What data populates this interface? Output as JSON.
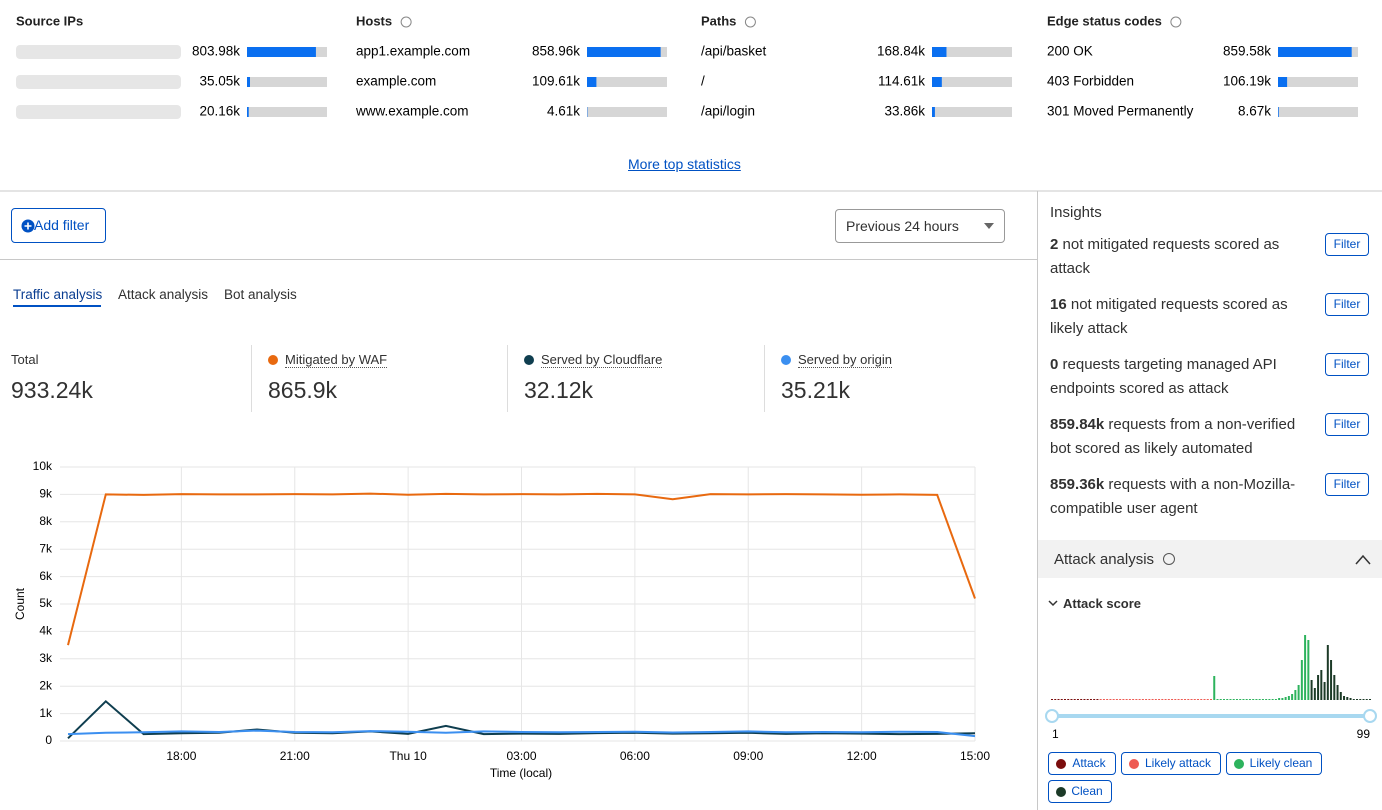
{
  "top_stats": [
    {
      "title": "Source IPs",
      "rows": [
        {
          "value": 803980,
          "label": "803.98k"
        },
        {
          "value": 35050,
          "label": "35.05k"
        },
        {
          "value": 20160,
          "label": "20.16k"
        }
      ]
    },
    {
      "title": "Hosts",
      "rows": [
        {
          "name": "app1.example.com",
          "value": 858960,
          "label": "858.96k"
        },
        {
          "name": "example.com",
          "value": 109610,
          "label": "109.61k"
        },
        {
          "name": "www.example.com",
          "value": 4610,
          "label": "4.61k"
        }
      ]
    },
    {
      "title": "Paths",
      "rows": [
        {
          "name": "/api/basket",
          "value": 168840,
          "label": "168.84k"
        },
        {
          "name": "/",
          "value": 114610,
          "label": "114.61k"
        },
        {
          "name": "/api/login",
          "value": 33860,
          "label": "33.86k"
        }
      ]
    },
    {
      "title": "Edge status codes",
      "rows": [
        {
          "name": "200 OK",
          "value": 859580,
          "label": "859.58k"
        },
        {
          "name": "403 Forbidden",
          "value": 106190,
          "label": "106.19k"
        },
        {
          "name": "301 Moved Permanently",
          "value": 8670,
          "label": "8.67k"
        }
      ]
    }
  ],
  "more_link": "More top statistics",
  "add_filter": "Add filter",
  "time_range": "Previous 24 hours",
  "tabs": [
    "Traffic analysis",
    "Attack analysis",
    "Bot analysis"
  ],
  "total": {
    "name": "Total",
    "value": 933240,
    "label": "933.24k"
  },
  "chart_data": [
    {
      "type": "line",
      "x_label": "Time (local)",
      "y_label": "Count",
      "categories": [
        null,
        null,
        null,
        "18:00",
        null,
        null,
        "21:00",
        null,
        null,
        "Thu 10",
        null,
        null,
        "03:00",
        null,
        null,
        "06:00",
        null,
        null,
        "09:00",
        null,
        null,
        "12:00",
        null,
        null,
        "15:00"
      ],
      "ylim": [
        0,
        10000
      ],
      "yticks": [
        0,
        {
          "value": 1000,
          "label": "1k"
        },
        {
          "value": 2000,
          "label": "2k"
        },
        {
          "value": 3000,
          "label": "3k"
        },
        {
          "value": 4000,
          "label": "4k"
        },
        {
          "value": 5000,
          "label": "5k"
        },
        {
          "value": 6000,
          "label": "6k"
        },
        {
          "value": 7000,
          "label": "7k"
        },
        {
          "value": 8000,
          "label": "8k"
        },
        {
          "value": 9000,
          "label": "9k"
        },
        {
          "value": 10000,
          "label": "10k"
        }
      ],
      "grid": true,
      "series": [
        {
          "name": "Mitigated by WAF",
          "total": "865.9k",
          "color": "#e8690f",
          "values": [
            3500,
            9000,
            8980,
            9010,
            9000,
            9000,
            9010,
            9000,
            9030,
            8990,
            9020,
            9000,
            9010,
            9000,
            9020,
            9000,
            8820,
            9010,
            9000,
            9010,
            9000,
            8990,
            9000,
            8980,
            5200
          ]
        },
        {
          "name": "Served by Cloudflare",
          "total": "32.12k",
          "color": "#0f3e4f",
          "values": [
            100,
            1450,
            250,
            280,
            300,
            420,
            300,
            280,
            350,
            260,
            550,
            250,
            270,
            260,
            290,
            300,
            270,
            280,
            300,
            260,
            280,
            270,
            250,
            260,
            280
          ]
        },
        {
          "name": "Served by origin",
          "total": "35.21k",
          "color": "#3b8ff0",
          "values": [
            250,
            300,
            320,
            350,
            330,
            380,
            330,
            320,
            360,
            340,
            300,
            350,
            330,
            320,
            330,
            340,
            310,
            330,
            350,
            320,
            330,
            320,
            340,
            330,
            180
          ]
        }
      ]
    },
    {
      "type": "histogram",
      "xlim": [
        1,
        99
      ],
      "xticks": [
        1,
        99
      ],
      "ylim": [
        0,
        70
      ],
      "series": [
        {
          "name": "Attack",
          "color": "#7a0c0c",
          "x": [
            1,
            2,
            3,
            4,
            5,
            6,
            7,
            8,
            9,
            10,
            11,
            12,
            13,
            14,
            15
          ],
          "values": [
            1,
            1,
            1,
            1,
            1,
            1,
            1,
            1,
            1,
            1,
            1,
            1,
            1,
            1,
            1
          ]
        },
        {
          "name": "Likely attack",
          "color": "#ee5a52",
          "x": [
            16,
            17,
            18,
            19,
            20,
            21,
            22,
            23,
            24,
            25,
            26,
            27,
            28,
            29,
            30,
            31,
            32,
            33,
            34,
            35,
            36,
            37,
            38,
            39,
            40,
            41,
            42,
            43,
            44,
            45,
            46,
            47,
            48,
            49,
            50
          ],
          "values": [
            1,
            1,
            1,
            1,
            1,
            1,
            1,
            1,
            1,
            1,
            1,
            1,
            1,
            1,
            1,
            1,
            1,
            1,
            1,
            1,
            1,
            1,
            1,
            1,
            1,
            1,
            1,
            1,
            1,
            1,
            1,
            1,
            1,
            1,
            1
          ]
        },
        {
          "name": "Likely clean",
          "color": "#2db35d",
          "x": [
            51,
            52,
            53,
            54,
            55,
            56,
            57,
            58,
            59,
            60,
            61,
            62,
            63,
            64,
            65,
            66,
            67,
            68,
            69,
            70,
            71,
            72,
            73,
            74,
            75,
            76,
            77,
            78,
            79,
            80
          ],
          "values": [
            24,
            1,
            1,
            1,
            1,
            1,
            1,
            1,
            1,
            1,
            1,
            1,
            1,
            1,
            1,
            1,
            1,
            1,
            1,
            1,
            2,
            2,
            3,
            4,
            6,
            10,
            15,
            40,
            65,
            60
          ]
        },
        {
          "name": "Clean",
          "color": "#1c3a27",
          "x": [
            81,
            82,
            83,
            84,
            85,
            86,
            87,
            88,
            89,
            90,
            91,
            92,
            93,
            94,
            95,
            96,
            97,
            98,
            99
          ],
          "values": [
            20,
            12,
            25,
            30,
            18,
            55,
            40,
            25,
            15,
            8,
            4,
            3,
            2,
            1,
            1,
            1,
            1,
            1,
            1
          ]
        }
      ]
    }
  ],
  "insights": {
    "title": "Insights",
    "button": "Filter",
    "items": [
      {
        "bold": "2",
        "text": "not mitigated requests scored as attack"
      },
      {
        "bold": "16",
        "text": "not mitigated requests scored as likely attack"
      },
      {
        "bold": "0",
        "text": "requests targeting managed API endpoints scored as attack"
      },
      {
        "bold": "859.84k",
        "text": "requests from a non-verified bot scored as likely automated"
      },
      {
        "bold": "859.36k",
        "text": "requests with a non-Mozilla-compatible user agent"
      }
    ]
  },
  "attack_analysis": {
    "title": "Attack analysis",
    "section": "Attack score"
  }
}
